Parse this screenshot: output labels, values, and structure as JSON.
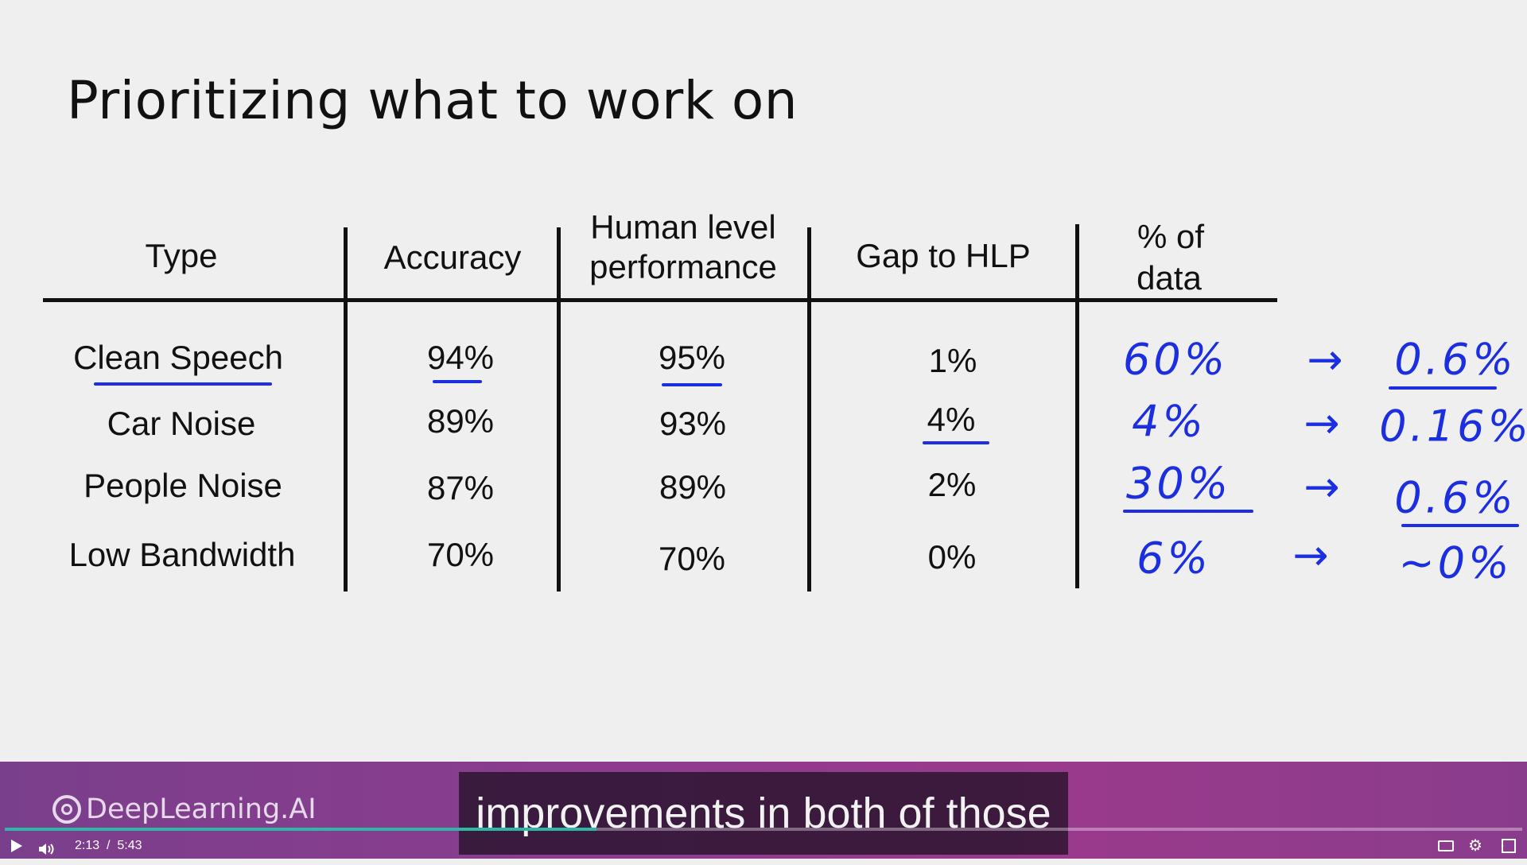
{
  "slide": {
    "title": "Prioritizing what to work on",
    "headers": {
      "type": "Type",
      "accuracy": "Accuracy",
      "hlp_line1": "Human level",
      "hlp_line2": "performance",
      "gap": "Gap to HLP",
      "pct_line1": "% of",
      "pct_line2": "data"
    },
    "rows": [
      {
        "type": "Clean Speech",
        "accuracy": "94%",
        "hlp": "95%",
        "gap": "1%",
        "pct": "60%",
        "arrow": "→",
        "result": "0.6%"
      },
      {
        "type": "Car Noise",
        "accuracy": "89%",
        "hlp": "93%",
        "gap": "4%",
        "pct": "4%",
        "arrow": "→",
        "result": "0.16%"
      },
      {
        "type": "People Noise",
        "accuracy": "87%",
        "hlp": "89%",
        "gap": "2%",
        "pct": "30%",
        "arrow": "→",
        "result": "0.6%"
      },
      {
        "type": "Low Bandwidth",
        "accuracy": "70%",
        "hlp": "70%",
        "gap": "0%",
        "pct": "6%",
        "arrow": "→",
        "result": "~0%"
      }
    ]
  },
  "branding": {
    "logo_text": "DeepLearning.AI"
  },
  "subtitle": {
    "text": "improvements in both of those"
  },
  "player": {
    "current_time": "2:13",
    "separator": "/",
    "duration": "5:43",
    "progress_fraction": 0.39,
    "icons": [
      "play-icon",
      "volume-icon",
      "captions-icon",
      "settings-gear-icon",
      "fullscreen-icon"
    ],
    "accent_color": "#2fb7a6"
  }
}
